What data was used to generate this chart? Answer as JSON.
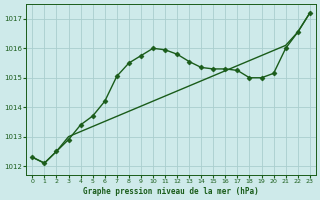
{
  "title": "Graphe pression niveau de la mer (hPa)",
  "background_color": "#ceeaea",
  "grid_color": "#aacece",
  "line_color": "#1a5c1a",
  "marker": "D",
  "marker_size": 2.5,
  "line_width": 1.0,
  "xlim": [
    -0.5,
    23.5
  ],
  "ylim": [
    1011.7,
    1017.5
  ],
  "yticks": [
    1012,
    1013,
    1014,
    1015,
    1016,
    1017
  ],
  "xticks": [
    0,
    1,
    2,
    3,
    4,
    5,
    6,
    7,
    8,
    9,
    10,
    11,
    12,
    13,
    14,
    15,
    16,
    17,
    18,
    19,
    20,
    21,
    22,
    23
  ],
  "series1_x": [
    0,
    1,
    2,
    3,
    4,
    5,
    6,
    7,
    8,
    9,
    10,
    11,
    12,
    13,
    14,
    15,
    16,
    17,
    18,
    19,
    20,
    21,
    22,
    23
  ],
  "series1_y": [
    1012.3,
    1012.1,
    1012.5,
    1012.9,
    1013.4,
    1013.7,
    1014.2,
    1015.05,
    1015.5,
    1015.75,
    1016.0,
    1015.95,
    1015.8,
    1015.55,
    1015.35,
    1015.3,
    1015.3,
    1015.25,
    1015.0,
    1015.0,
    1015.15,
    1016.0,
    1016.55,
    1017.2
  ],
  "series2_x": [
    0,
    1,
    2,
    3,
    21,
    22,
    23
  ],
  "series2_y": [
    1012.3,
    1012.1,
    1012.5,
    1013.0,
    1016.1,
    1016.55,
    1017.2
  ]
}
